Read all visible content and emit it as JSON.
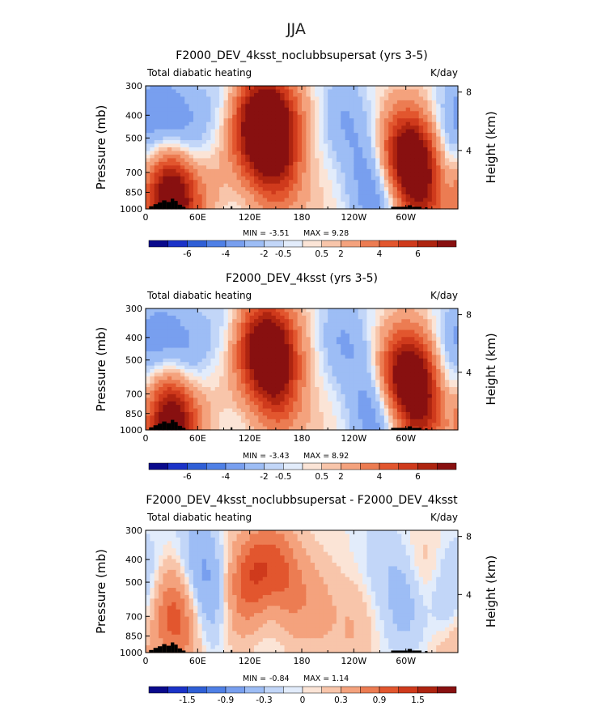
{
  "figure_title": "JJA",
  "colors": {
    "palette": [
      "#0a0a8c",
      "#1b33c8",
      "#2f5fd6",
      "#4f80e6",
      "#789fef",
      "#9dbdf5",
      "#c2d6f8",
      "#e2ecfb",
      "#fbe4d6",
      "#f8c5aa",
      "#f4a27d",
      "#ec7c52",
      "#e2562e",
      "#cf3a1c",
      "#ae2410",
      "#881010"
    ],
    "topography": "#000000"
  },
  "chart_data": [
    {
      "type": "heatmap",
      "title": "F2000_DEV_4ksst_noclubbsupersat (yrs 3-5)",
      "left_label": "Total diabatic heating",
      "units": "K/day",
      "ylabel": "Pressure (mb)",
      "ylabel_right": "Height (km)",
      "xticks": [
        "0",
        "60E",
        "120E",
        "180",
        "120W",
        "60W"
      ],
      "xtick_values": [
        0,
        60,
        120,
        180,
        240,
        300
      ],
      "xlim": [
        0,
        360
      ],
      "yticks": [
        "300",
        "400",
        "500",
        "700",
        "850",
        "1000"
      ],
      "ytick_values": [
        300,
        400,
        500,
        700,
        850,
        1000
      ],
      "ylim": [
        1000,
        300
      ],
      "yticks_right": [
        "8",
        "4"
      ],
      "ytick_right_values": [
        8,
        4
      ],
      "min_label": "MIN =",
      "min_value": "-3.51",
      "max_label": "MAX =",
      "max_value": "9.28",
      "colorbar_labels": [
        "-6",
        "-4",
        "-2",
        "-0.5",
        "0.5",
        "2",
        "4",
        "6"
      ],
      "contour_levels": [
        -7,
        -6,
        -5,
        -4,
        -3,
        -2,
        -1,
        -0.5,
        0,
        0.5,
        1,
        2,
        3,
        4,
        5,
        6,
        7
      ],
      "features": [
        {
          "lon": 136,
          "p": 420,
          "value": 8.5
        },
        {
          "lon": 145,
          "p": 600,
          "value": 3.5
        },
        {
          "lon": 160,
          "p": 760,
          "value": 1.5
        },
        {
          "lon": 110,
          "p": 700,
          "value": 0.8
        },
        {
          "lon": 27,
          "p": 945,
          "value": 7.0
        },
        {
          "lon": 33,
          "p": 700,
          "value": 3.0
        },
        {
          "lon": 82,
          "p": 780,
          "value": 0.8
        },
        {
          "lon": 300,
          "p": 600,
          "value": 7.5
        },
        {
          "lon": 315,
          "p": 740,
          "value": 2.2
        },
        {
          "lon": 328,
          "p": 960,
          "value": 2.5
        },
        {
          "lon": 15,
          "p": 400,
          "value": -2.5
        },
        {
          "lon": 45,
          "p": 500,
          "value": -3.0
        },
        {
          "lon": 90,
          "p": 360,
          "value": -1.5
        },
        {
          "lon": 225,
          "p": 400,
          "value": -1.8
        },
        {
          "lon": 255,
          "p": 560,
          "value": -1.6
        },
        {
          "lon": 268,
          "p": 855,
          "value": -3.4
        },
        {
          "lon": 344,
          "p": 480,
          "value": -1.6
        },
        {
          "lon": 352,
          "p": 880,
          "value": -2.0
        },
        {
          "lon": 200,
          "p": 960,
          "value": 0.5
        },
        {
          "lon": 100,
          "p": 950,
          "value": -0.8
        }
      ]
    },
    {
      "type": "heatmap",
      "title": "F2000_DEV_4ksst (yrs 3-5)",
      "left_label": "Total diabatic heating",
      "units": "K/day",
      "ylabel": "Pressure (mb)",
      "ylabel_right": "Height (km)",
      "xticks": [
        "0",
        "60E",
        "120E",
        "180",
        "120W",
        "60W"
      ],
      "xtick_values": [
        0,
        60,
        120,
        180,
        240,
        300
      ],
      "xlim": [
        0,
        360
      ],
      "yticks": [
        "300",
        "400",
        "500",
        "700",
        "850",
        "1000"
      ],
      "ytick_values": [
        300,
        400,
        500,
        700,
        850,
        1000
      ],
      "ylim": [
        1000,
        300
      ],
      "yticks_right": [
        "8",
        "4"
      ],
      "ytick_right_values": [
        8,
        4
      ],
      "min_label": "MIN =",
      "min_value": "-3.43",
      "max_label": "MAX =",
      "max_value": "8.92",
      "colorbar_labels": [
        "-6",
        "-4",
        "-2",
        "-0.5",
        "0.5",
        "2",
        "4",
        "6"
      ],
      "contour_levels": [
        -7,
        -6,
        -5,
        -4,
        -3,
        -2,
        -1,
        -0.5,
        0,
        0.5,
        1,
        2,
        3,
        4,
        5,
        6,
        7
      ],
      "features": [
        {
          "lon": 138,
          "p": 430,
          "value": 7.0
        },
        {
          "lon": 148,
          "p": 600,
          "value": 3.2
        },
        {
          "lon": 160,
          "p": 760,
          "value": 1.4
        },
        {
          "lon": 110,
          "p": 700,
          "value": 0.6
        },
        {
          "lon": 27,
          "p": 945,
          "value": 6.5
        },
        {
          "lon": 33,
          "p": 700,
          "value": 2.5
        },
        {
          "lon": 82,
          "p": 780,
          "value": 0.6
        },
        {
          "lon": 300,
          "p": 590,
          "value": 7.8
        },
        {
          "lon": 315,
          "p": 740,
          "value": 2.0
        },
        {
          "lon": 328,
          "p": 960,
          "value": 2.5
        },
        {
          "lon": 15,
          "p": 400,
          "value": -2.2
        },
        {
          "lon": 45,
          "p": 500,
          "value": -2.8
        },
        {
          "lon": 90,
          "p": 360,
          "value": -1.2
        },
        {
          "lon": 225,
          "p": 400,
          "value": -1.9
        },
        {
          "lon": 255,
          "p": 560,
          "value": -1.5
        },
        {
          "lon": 268,
          "p": 860,
          "value": -3.2
        },
        {
          "lon": 344,
          "p": 480,
          "value": -1.6
        },
        {
          "lon": 352,
          "p": 880,
          "value": -2.0
        },
        {
          "lon": 200,
          "p": 960,
          "value": 0.5
        },
        {
          "lon": 100,
          "p": 950,
          "value": -0.8
        }
      ]
    },
    {
      "type": "heatmap",
      "title": "F2000_DEV_4ksst_noclubbsupersat - F2000_DEV_4ksst",
      "left_label": "Total diabatic heating",
      "units": "K/day",
      "ylabel": "Pressure (mb)",
      "ylabel_right": "Height (km)",
      "xticks": [
        "0",
        "60E",
        "120E",
        "180",
        "120W",
        "60W"
      ],
      "xtick_values": [
        0,
        60,
        120,
        180,
        240,
        300
      ],
      "xlim": [
        0,
        360
      ],
      "yticks": [
        "300",
        "400",
        "500",
        "700",
        "850",
        "1000"
      ],
      "ytick_values": [
        300,
        400,
        500,
        700,
        850,
        1000
      ],
      "ylim": [
        1000,
        300
      ],
      "yticks_right": [
        "8",
        "4"
      ],
      "ytick_right_values": [
        8,
        4
      ],
      "min_label": "MIN =",
      "min_value": "-0.84",
      "max_label": "MAX =",
      "max_value": "1.14",
      "colorbar_labels": [
        "-1.5",
        "-0.9",
        "-0.3",
        "0",
        "0.3",
        "0.9",
        "1.5"
      ],
      "contour_levels": [
        -2.1,
        -1.8,
        -1.5,
        -1.2,
        -0.9,
        -0.6,
        -0.3,
        -0.1,
        0,
        0.1,
        0.3,
        0.6,
        0.9,
        1.2,
        1.5,
        1.8,
        2.1
      ],
      "features": [
        {
          "lon": 28,
          "p": 650,
          "value": 0.9
        },
        {
          "lon": 45,
          "p": 850,
          "value": 0.4
        },
        {
          "lon": 100,
          "p": 600,
          "value": 0.5
        },
        {
          "lon": 125,
          "p": 480,
          "value": 1.0
        },
        {
          "lon": 150,
          "p": 420,
          "value": 0.7
        },
        {
          "lon": 170,
          "p": 560,
          "value": 0.5
        },
        {
          "lon": 200,
          "p": 650,
          "value": 0.35
        },
        {
          "lon": 240,
          "p": 800,
          "value": 0.3
        },
        {
          "lon": 80,
          "p": 600,
          "value": -0.6
        },
        {
          "lon": 60,
          "p": 400,
          "value": -0.5
        },
        {
          "lon": 8,
          "p": 500,
          "value": -0.3
        },
        {
          "lon": 140,
          "p": 650,
          "value": -0.25
        },
        {
          "lon": 300,
          "p": 600,
          "value": -0.5
        },
        {
          "lon": 320,
          "p": 480,
          "value": 0.3
        },
        {
          "lon": 345,
          "p": 650,
          "value": -0.4
        },
        {
          "lon": 270,
          "p": 400,
          "value": -0.2
        },
        {
          "lon": 350,
          "p": 960,
          "value": 0.4
        }
      ]
    }
  ]
}
